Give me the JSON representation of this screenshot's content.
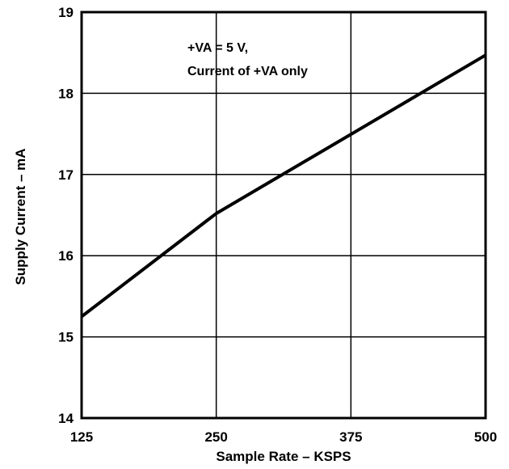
{
  "chart_data": {
    "type": "line",
    "title": "",
    "xlabel": "Sample Rate – KSPS",
    "ylabel": "Supply Current – mA",
    "x_ticks": [
      125,
      250,
      375,
      500
    ],
    "y_ticks": [
      14,
      15,
      16,
      17,
      18,
      19
    ],
    "x_tick_labels": [
      "125",
      "250",
      "375",
      "500"
    ],
    "y_tick_labels": [
      "14",
      "15",
      "16",
      "17",
      "18",
      "19"
    ],
    "xlim": [
      125,
      500
    ],
    "ylim": [
      14,
      19
    ],
    "grid": true,
    "series": [
      {
        "x": [
          125,
          250,
          500
        ],
        "y": [
          15.25,
          16.52,
          18.47
        ]
      }
    ],
    "annotation": {
      "line1": "+VA = 5 V,",
      "line2": "Current of +VA only"
    },
    "colors": {
      "line": "#000000",
      "grid": "#000000",
      "background": "#ffffff"
    }
  }
}
